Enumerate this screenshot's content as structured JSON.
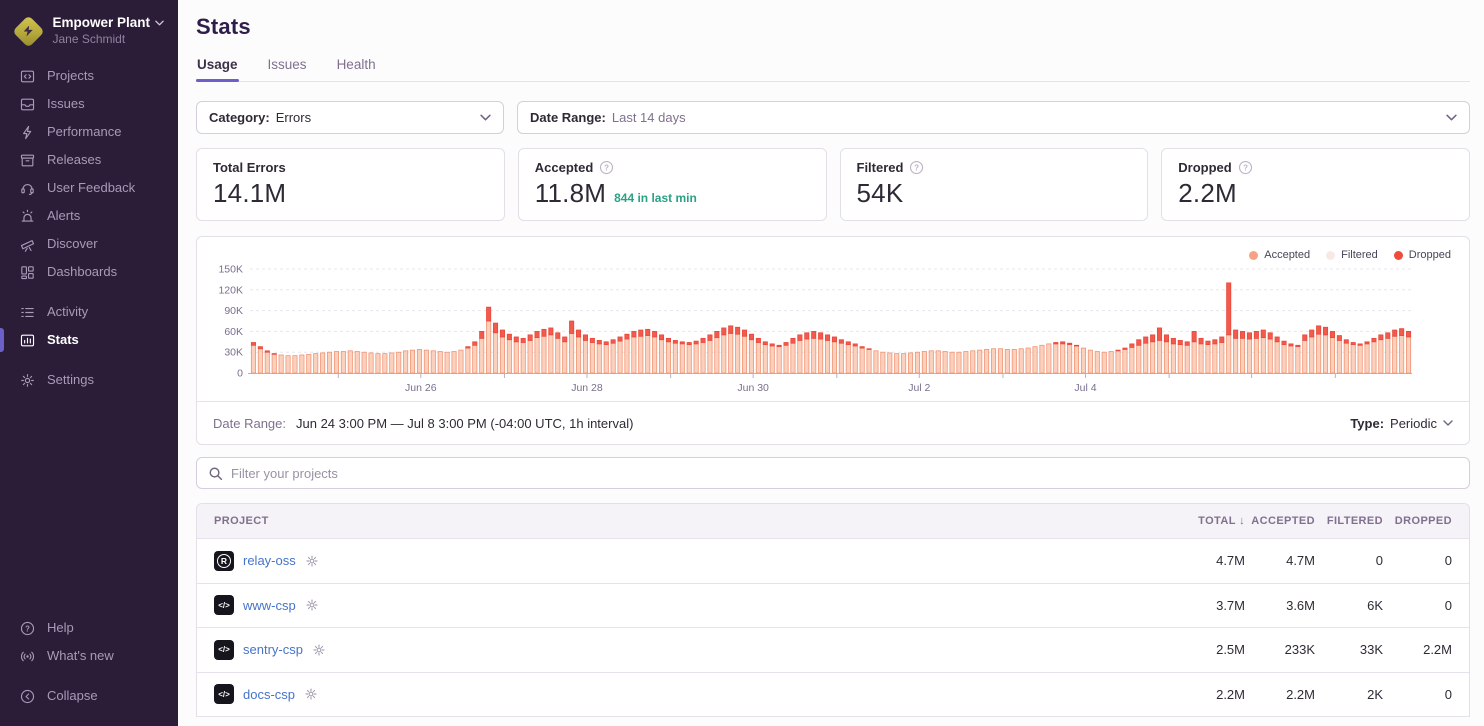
{
  "sidebar": {
    "org": {
      "name": "Empower Plant",
      "user": "Jane Schmidt"
    },
    "items": [
      {
        "label": "Projects"
      },
      {
        "label": "Issues"
      },
      {
        "label": "Performance"
      },
      {
        "label": "Releases"
      },
      {
        "label": "User Feedback"
      },
      {
        "label": "Alerts"
      },
      {
        "label": "Discover"
      },
      {
        "label": "Dashboards"
      }
    ],
    "items2": [
      {
        "label": "Activity"
      },
      {
        "label": "Stats"
      },
      {
        "label": "Settings"
      }
    ],
    "footer": [
      {
        "label": "Help"
      },
      {
        "label": "What's new"
      }
    ],
    "collapse_label": "Collapse"
  },
  "header": {
    "title": "Stats",
    "tabs": [
      {
        "label": "Usage",
        "active": true
      },
      {
        "label": "Issues",
        "active": false
      },
      {
        "label": "Health",
        "active": false
      }
    ]
  },
  "filters": {
    "category_label": "Category:",
    "category_value": "Errors",
    "date_range_label": "Date Range:",
    "date_range_value": "Last 14 days"
  },
  "cards": [
    {
      "label": "Total Errors",
      "value": "14.1M"
    },
    {
      "label": "Accepted",
      "value": "11.8M",
      "sub": "844 in last min"
    },
    {
      "label": "Filtered",
      "value": "54K"
    },
    {
      "label": "Dropped",
      "value": "2.2M"
    }
  ],
  "chart_data": {
    "type": "bar",
    "stacked": true,
    "title": "Usage for errors over last 14 days, 1h interval",
    "xlabel": "",
    "ylabel": "",
    "values_unit": "thousands of events per interval",
    "ylim": [
      0,
      150000
    ],
    "yticks": [
      "0",
      "30K",
      "60K",
      "90K",
      "120K",
      "150K"
    ],
    "xticks": [
      {
        "label": "Jun 26",
        "pos": 0.147
      },
      {
        "label": "Jun 28",
        "pos": 0.29
      },
      {
        "label": "Jun 30",
        "pos": 0.433
      },
      {
        "label": "Jul 2",
        "pos": 0.576
      },
      {
        "label": "Jul 4",
        "pos": 0.719
      }
    ],
    "minor_ticks": [
      0.076,
      0.147,
      0.219,
      0.29,
      0.362,
      0.433,
      0.505,
      0.576,
      0.648,
      0.719,
      0.791,
      0.862,
      0.934
    ],
    "legend": [
      {
        "label": "Accepted",
        "color": "#f8a285"
      },
      {
        "label": "Filtered",
        "color": "#f9e9e4"
      },
      {
        "label": "Dropped",
        "color": "#ee4d3e"
      }
    ],
    "bar_colors": {
      "accepted_fill": "#fbd0bd",
      "accepted_stroke": "#f2916e",
      "dropped_fill": "#f25a4b",
      "dropped_stroke": "#e8473c"
    },
    "legend_position": "top-right",
    "grid": true,
    "series": [
      {
        "name": "Accepted",
        "values": [
          40,
          35,
          30,
          27,
          26,
          25,
          25,
          26,
          27,
          28,
          29,
          30,
          31,
          31,
          32,
          31,
          30,
          29,
          28,
          28,
          29,
          30,
          32,
          33,
          34,
          33,
          32,
          31,
          30,
          31,
          33,
          36,
          40,
          50,
          75,
          58,
          52,
          48,
          45,
          44,
          47,
          51,
          53,
          55,
          50,
          45,
          57,
          52,
          47,
          44,
          42,
          41,
          43,
          46,
          49,
          52,
          53,
          54,
          52,
          48,
          45,
          43,
          42,
          41,
          42,
          44,
          47,
          51,
          55,
          57,
          56,
          53,
          48,
          44,
          41,
          39,
          38,
          40,
          43,
          47,
          49,
          50,
          49,
          47,
          45,
          43,
          41,
          39,
          36,
          34,
          32,
          30,
          29,
          28,
          28,
          29,
          30,
          31,
          32,
          32,
          31,
          30,
          30,
          31,
          32,
          33,
          34,
          35,
          35,
          34,
          34,
          35,
          36,
          38,
          40,
          42,
          42,
          42,
          41,
          39,
          36,
          33,
          31,
          30,
          31,
          32,
          34,
          37,
          40,
          43,
          45,
          47,
          45,
          42,
          41,
          40,
          45,
          42,
          41,
          42,
          44,
          55,
          50,
          50,
          49,
          50,
          51,
          49,
          45,
          41,
          39,
          38,
          47,
          52,
          56,
          55,
          51,
          47,
          43,
          41,
          40,
          42,
          45,
          48,
          50,
          53,
          54,
          52
        ]
      },
      {
        "name": "Dropped",
        "values": [
          4,
          3,
          2,
          1,
          0,
          0,
          0,
          0,
          0,
          0,
          0,
          0,
          0,
          0,
          0,
          0,
          0,
          0,
          0,
          0,
          0,
          0,
          0,
          0,
          0,
          0,
          0,
          0,
          0,
          0,
          0,
          2,
          5,
          10,
          20,
          14,
          10,
          8,
          7,
          6,
          8,
          9,
          10,
          10,
          8,
          7,
          18,
          10,
          8,
          6,
          5,
          4,
          5,
          6,
          7,
          8,
          9,
          9,
          8,
          7,
          5,
          4,
          3,
          3,
          4,
          6,
          8,
          9,
          10,
          11,
          10,
          9,
          8,
          6,
          4,
          3,
          2,
          4,
          7,
          8,
          9,
          10,
          9,
          8,
          7,
          5,
          4,
          3,
          2,
          1,
          0,
          0,
          0,
          0,
          0,
          0,
          0,
          0,
          0,
          0,
          0,
          0,
          0,
          0,
          0,
          0,
          0,
          0,
          0,
          0,
          0,
          0,
          0,
          0,
          0,
          0,
          2,
          3,
          2,
          1,
          0,
          0,
          0,
          0,
          0,
          1,
          2,
          5,
          8,
          9,
          10,
          18,
          10,
          8,
          6,
          5,
          15,
          8,
          5,
          6,
          8,
          75,
          12,
          10,
          9,
          10,
          11,
          9,
          7,
          5,
          3,
          2,
          8,
          10,
          12,
          11,
          9,
          7,
          5,
          3,
          2,
          3,
          5,
          7,
          8,
          9,
          10,
          8
        ]
      }
    ]
  },
  "chart_footer": {
    "date_range_label": "Date Range:",
    "date_range_value": "Jun 24 3:00 PM — Jul 8 3:00 PM (-04:00 UTC, 1h interval)",
    "type_label": "Type:",
    "type_value": "Periodic"
  },
  "search": {
    "placeholder": "Filter your projects"
  },
  "table": {
    "columns": [
      "Project",
      "Total",
      "Accepted",
      "Filtered",
      "Dropped"
    ],
    "sort_column": "Total",
    "sort_indicator": "↓",
    "rows": [
      {
        "project": "relay-oss",
        "platform": "rust",
        "total": "4.7M",
        "accepted": "4.7M",
        "filtered": "0",
        "dropped": "0"
      },
      {
        "project": "www-csp",
        "platform": "csp",
        "total": "3.7M",
        "accepted": "3.6M",
        "filtered": "6K",
        "dropped": "0"
      },
      {
        "project": "sentry-csp",
        "platform": "csp",
        "total": "2.5M",
        "accepted": "233K",
        "filtered": "33K",
        "dropped": "2.2M"
      },
      {
        "project": "docs-csp",
        "platform": "csp",
        "total": "2.2M",
        "accepted": "2.2M",
        "filtered": "2K",
        "dropped": "0"
      }
    ]
  },
  "colors": {
    "sidebar_bg": "#2b1d38",
    "accent": "#6c5fc7",
    "link": "#4674ca",
    "teal": "#2ba185",
    "heading": "#2f1d4a"
  }
}
